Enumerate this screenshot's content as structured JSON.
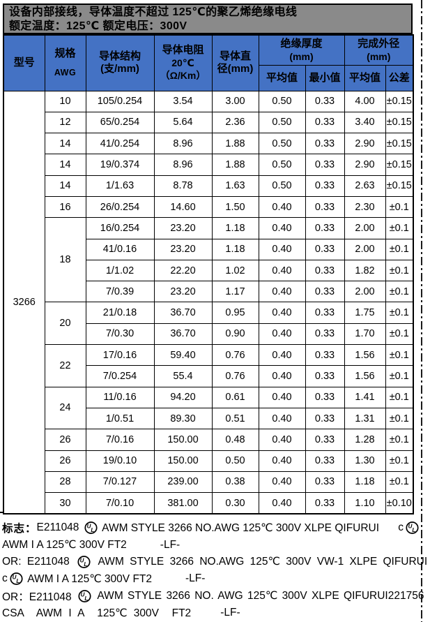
{
  "page": {
    "title_line1": "设备内部接线，导体温度不超过 125℃的聚乙烯绝缘电线",
    "title_line2": "额定温度：125℃ 额定电压：300V"
  },
  "colors": {
    "header_blue": "#4472c4",
    "band_gray": "#8a8a8a",
    "border_black": "#000000"
  },
  "table": {
    "model": "3266",
    "header": {
      "model": "型号",
      "spec1": "规格",
      "spec2": "AWG",
      "structure1": "导体结构",
      "structure2": "(支/mm)",
      "resistance1": "导体电阻",
      "resistance2": "20℃",
      "resistance3": "（Ω/Km）",
      "diameter1": "导体直",
      "diameter2": "径(mm)",
      "insulation1": "绝缘厚度",
      "insulation2": "(mm)",
      "outer1": "完成外径",
      "outer2": "(mm)",
      "sub_avg1": "平均值",
      "sub_min": "最小值",
      "sub_avg2": "平均值",
      "sub_tol": "公差"
    },
    "rows": [
      {
        "awg": "10",
        "awg_span": 1,
        "cells": [
          "105/0.254",
          "3.54",
          "3.00",
          "0.50",
          "0.33",
          "4.00",
          "±0.15"
        ]
      },
      {
        "awg": "12",
        "awg_span": 1,
        "cells": [
          "65/0.254",
          "5.64",
          "2.36",
          "0.50",
          "0.33",
          "3.40",
          "±0.15"
        ]
      },
      {
        "awg": "14",
        "awg_span": 1,
        "cells": [
          "41/0.254",
          "8.96",
          "1.88",
          "0.50",
          "0.33",
          "2.90",
          "±0.15"
        ]
      },
      {
        "awg": "14",
        "awg_span": 1,
        "cells": [
          "19/0.374",
          "8.96",
          "1.88",
          "0.50",
          "0.33",
          "2.90",
          "±0.15"
        ]
      },
      {
        "awg": "14",
        "awg_span": 1,
        "cells": [
          "1/1.63",
          "8.78",
          "1.63",
          "0.50",
          "0.33",
          "2.63",
          "±0.15"
        ]
      },
      {
        "awg": "16",
        "awg_span": 1,
        "cells": [
          "26/0.254",
          "14.60",
          "1.50",
          "0.40",
          "0.33",
          "2.30",
          "±0.1"
        ]
      },
      {
        "awg": "18",
        "awg_span": 4,
        "cells": [
          "16/0.254",
          "23.20",
          "1.18",
          "0.40",
          "0.33",
          "2.00",
          "±0.1"
        ]
      },
      {
        "awg": null,
        "awg_span": 0,
        "cells": [
          "41/0.16",
          "23.20",
          "1.18",
          "0.40",
          "0.33",
          "2.00",
          "±0.1"
        ]
      },
      {
        "awg": null,
        "awg_span": 0,
        "cells": [
          "1/1.02",
          "22.20",
          "1.02",
          "0.40",
          "0.33",
          "1.82",
          "±0.1"
        ]
      },
      {
        "awg": null,
        "awg_span": 0,
        "cells": [
          "7/0.39",
          "23.20",
          "1.17",
          "0.40",
          "0.33",
          "2.00",
          "±0.1"
        ]
      },
      {
        "awg": "20",
        "awg_span": 2,
        "cells": [
          "21/0.18",
          "36.70",
          "0.95",
          "0.40",
          "0.33",
          "1.75",
          "±0.1"
        ]
      },
      {
        "awg": null,
        "awg_span": 0,
        "cells": [
          "7/0.30",
          "36.70",
          "0.90",
          "0.40",
          "0.33",
          "1.70",
          "±0.1"
        ]
      },
      {
        "awg": "22",
        "awg_span": 2,
        "cells": [
          "17/0.16",
          "59.40",
          "0.76",
          "0.40",
          "0.33",
          "1.56",
          "±0.1"
        ]
      },
      {
        "awg": null,
        "awg_span": 0,
        "cells": [
          "7/0.254",
          "55.4",
          "0.76",
          "0.40",
          "0.33",
          "1.56",
          "±0.1"
        ]
      },
      {
        "awg": "24",
        "awg_span": 2,
        "cells": [
          "11/0.16",
          "94.20",
          "0.61",
          "0.40",
          "0.33",
          "1.41",
          "±0.1"
        ]
      },
      {
        "awg": null,
        "awg_span": 0,
        "cells": [
          "1/0.51",
          "89.30",
          "0.51",
          "0.40",
          "0.33",
          "1.31",
          "±0.1"
        ]
      },
      {
        "awg": "26",
        "awg_span": 1,
        "cells": [
          "7/0.16",
          "150.00",
          "0.48",
          "0.40",
          "0.33",
          "1.28",
          "±0.1"
        ]
      },
      {
        "awg": "26",
        "awg_span": 1,
        "cells": [
          "19/0.10",
          "150.00",
          "0.50",
          "0.40",
          "0.33",
          "1.30",
          "±0.1"
        ]
      },
      {
        "awg": "28",
        "awg_span": 1,
        "cells": [
          "7/0.127",
          "239.00",
          "0.38",
          "0.40",
          "0.33",
          "1.18",
          "±0.1"
        ]
      },
      {
        "awg": "30",
        "awg_span": 1,
        "cells": [
          "7/0.10",
          "381.00",
          "0.30",
          "0.40",
          "0.33",
          "1.10",
          "±0.10"
        ]
      }
    ]
  },
  "footer": {
    "lines": [
      {
        "spread": 0,
        "tokens": [
          {
            "t": "cjk",
            "v": "标志："
          },
          {
            "t": "txt",
            "v": "E211048 "
          },
          {
            "t": "ul"
          },
          {
            "t": "txt",
            "v": " AWM STYLE 3266 NO.AWG 125℃ 300V XLPE QIFURUI"
          },
          {
            "t": "gap"
          },
          {
            "t": "txt",
            "v": "c"
          },
          {
            "t": "ul"
          }
        ]
      },
      {
        "spread": 0,
        "tokens": [
          {
            "t": "txt",
            "v": "AWM I A 125℃ 300V FT2"
          },
          {
            "t": "sp",
            "w": 48
          },
          {
            "t": "txt",
            "v": "-LF-"
          }
        ]
      },
      {
        "spread": 4,
        "tokens": [
          {
            "t": "txt",
            "v": "OR: E211048 "
          },
          {
            "t": "ul"
          },
          {
            "t": "txt",
            "v": " AWM STYLE 3266 NO.AWG 125℃ 300V VW-1 XLPE QIFURUI"
          }
        ]
      },
      {
        "spread": 0,
        "tokens": [
          {
            "t": "txt",
            "v": "c"
          },
          {
            "t": "ul"
          },
          {
            "t": "txt",
            "v": " AWM I A 125℃ 300V FT2"
          },
          {
            "t": "sp",
            "w": 48
          },
          {
            "t": "txt",
            "v": "-LF-"
          }
        ]
      },
      {
        "spread": 2,
        "tokens": [
          {
            "t": "txt",
            "v": "OR：E211048 "
          },
          {
            "t": "ul"
          },
          {
            "t": "txt",
            "v": " AWM STYLE 3266 NO. AWG 125℃ 300V XLPE QIFURUI"
          },
          {
            "t": "sp",
            "w": 28
          },
          {
            "t": "txt",
            "v": "221756"
          }
        ]
      },
      {
        "spread": 5,
        "tokens": [
          {
            "t": "txt",
            "v": "CSA  AWM I A  125℃ 300V  FT2"
          },
          {
            "t": "sp",
            "w": 42
          },
          {
            "t": "txt",
            "v": "-LF-"
          }
        ]
      }
    ]
  }
}
